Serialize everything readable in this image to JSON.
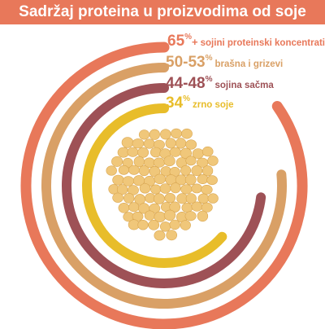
{
  "title": "Sadržaj proteina u proizvodima od soje",
  "colors": {
    "title_bg": "#e8785a",
    "series": [
      "#e8785a",
      "#d9a066",
      "#9e5156",
      "#e8bd2a"
    ]
  },
  "chart_data": {
    "type": "radial-bar",
    "title": "Sadržaj proteina u proizvodima od soje",
    "unit": "%",
    "items": [
      {
        "value": "65",
        "suffix": "+",
        "label": "sojini proteinski koncentrati",
        "min": 65,
        "max": 65,
        "color": "#e8785a"
      },
      {
        "value": "50-53",
        "suffix": "",
        "label": "brašna i grizevi",
        "min": 50,
        "max": 53,
        "color": "#d9a066"
      },
      {
        "value": "44-48",
        "suffix": "",
        "label": "sojina sačma",
        "min": 44,
        "max": 48,
        "color": "#9e5156"
      },
      {
        "value": "34",
        "suffix": "",
        "label": "zrno soje",
        "min": 34,
        "max": 34,
        "color": "#e8bd2a"
      }
    ]
  }
}
